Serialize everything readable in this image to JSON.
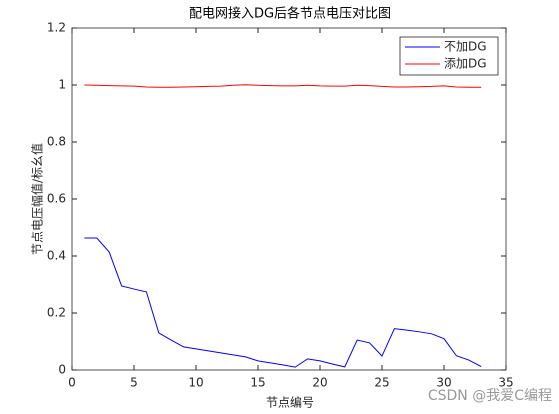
{
  "chart_data": {
    "type": "line",
    "title": "配电网接入DG后各节点电压对比图",
    "x_label": "节点编号",
    "y_label": "节点电压幅值/标幺值",
    "x": [
      1,
      2,
      3,
      4,
      5,
      6,
      7,
      8,
      9,
      10,
      11,
      12,
      13,
      14,
      15,
      16,
      17,
      18,
      19,
      20,
      21,
      22,
      23,
      24,
      25,
      26,
      27,
      28,
      29,
      30,
      31,
      32,
      33
    ],
    "series": [
      {
        "name": "不加DG",
        "color": "#0000ff",
        "values": [
          0.463,
          0.463,
          0.414,
          0.295,
          0.284,
          0.274,
          0.13,
          0.105,
          0.081,
          0.074,
          0.067,
          0.06,
          0.053,
          0.046,
          0.032,
          0.025,
          0.018,
          0.01,
          0.039,
          0.032,
          0.021,
          0.011,
          0.105,
          0.095,
          0.049,
          0.145,
          0.14,
          0.134,
          0.127,
          0.11,
          0.05,
          0.035,
          0.012
        ]
      },
      {
        "name": "添加DG",
        "color": "#ff0000",
        "values": [
          1.0,
          0.999,
          0.998,
          0.997,
          0.996,
          0.993,
          0.992,
          0.992,
          0.993,
          0.994,
          0.995,
          0.996,
          0.999,
          1.001,
          0.999,
          0.998,
          0.997,
          0.997,
          0.999,
          0.997,
          0.996,
          0.996,
          0.999,
          0.998,
          0.995,
          0.993,
          0.993,
          0.994,
          0.995,
          0.997,
          0.993,
          0.992,
          0.992
        ]
      }
    ],
    "xlim": [
      0,
      35
    ],
    "xticks": [
      0,
      5,
      10,
      15,
      20,
      25,
      30,
      35
    ],
    "ylim": [
      0,
      1.2
    ],
    "yticks": [
      0,
      0.2,
      0.4,
      0.6,
      0.8,
      1,
      1.2
    ],
    "legend": "upper right",
    "watermark": "CSDN @我爱C编程"
  }
}
